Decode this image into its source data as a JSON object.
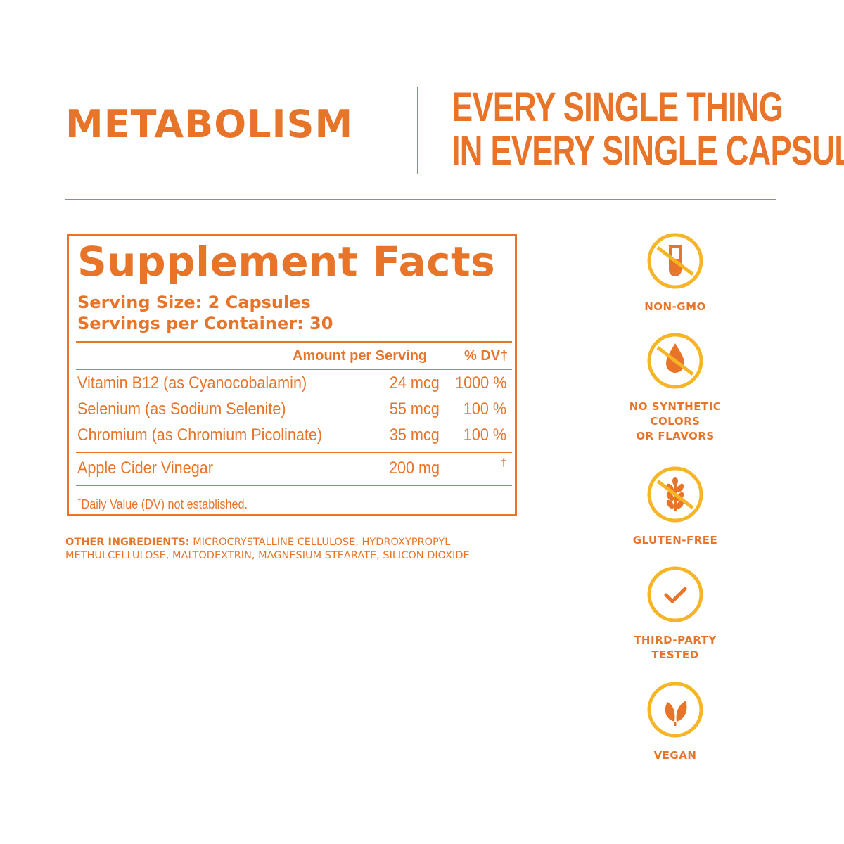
{
  "header": {
    "product": "METABOLISM",
    "tagline": [
      "EVERY SINGLE THING",
      "IN EVERY SINGLE CAPSULE"
    ]
  },
  "facts": {
    "title": "Supplement Facts",
    "serving_size": "Serving Size: 2 Capsules",
    "servings_per_container": "Servings per Container: 30",
    "col_amount": "Amount per Serving",
    "col_dv": "% DV†",
    "rows": [
      {
        "name": "Vitamin B12 (as Cyanocobalamin)",
        "amount": "24 mcg",
        "dv": "1000 %"
      },
      {
        "name": "Selenium (as Sodium Selenite)",
        "amount": "55 mcg",
        "dv": "100 %"
      },
      {
        "name": "Chromium (as Chromium Picolinate)",
        "amount": "35 mcg",
        "dv": "100 %"
      },
      {
        "name": "Apple Cider Vinegar",
        "amount": "200 mg",
        "dv": "†"
      }
    ],
    "footnote_mark": "†",
    "footnote": "Daily Value (DV) not established."
  },
  "other_ingredients": {
    "label": "OTHER INGREDIENTS:",
    "text": "MICROCRYSTALLINE CELLULOSE, HYDROXYPROPYL METHULCELLULOSE, MALTODEXTRIN, MAGNESIUM STEARATE, SILICON DIOXIDE"
  },
  "badges": [
    {
      "icon": "no-gmo-test-tube-icon",
      "lines": [
        "NON-GMO"
      ]
    },
    {
      "icon": "no-synthetic-drop-icon",
      "lines": [
        "NO SYNTHETIC",
        "COLORS",
        "OR FLAVORS"
      ]
    },
    {
      "icon": "no-gluten-wheat-icon",
      "lines": [
        "GLUTEN-FREE"
      ]
    },
    {
      "icon": "checkmark-icon",
      "lines": [
        "THIRD-PARTY",
        "TESTED"
      ]
    },
    {
      "icon": "leaf-icon",
      "lines": [
        "VEGAN"
      ]
    }
  ],
  "colors": {
    "primary": "#e8742a",
    "badge_ring": "#f5b526"
  }
}
